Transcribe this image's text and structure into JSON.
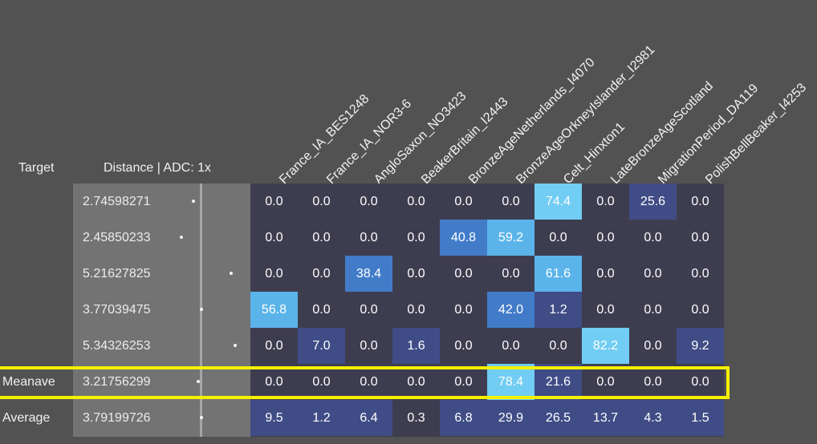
{
  "headers": {
    "target": "Target",
    "distance": "Distance | ADC: 1x"
  },
  "columns": [
    "France_IA_BES1248",
    "France_IA_NOR3-6",
    "AngloSaxon_NO3423",
    "BeakerBritain_I2443",
    "BronzeAgeNetherlands_I4070",
    "BronzeAgeOrkneyIslander_I2981",
    "Celt_Hinxton1",
    "LateBronzeAgeScotland",
    "MigrationPeriod_DA119",
    "PolishBellBeaker_I4253"
  ],
  "rows": [
    {
      "target": "",
      "distance": "2.74598271",
      "values": [
        "0.0",
        "0.0",
        "0.0",
        "0.0",
        "0.0",
        "0.0",
        "74.4",
        "0.0",
        "25.6",
        "0.0"
      ]
    },
    {
      "target": "",
      "distance": "2.45850233",
      "values": [
        "0.0",
        "0.0",
        "0.0",
        "0.0",
        "40.8",
        "59.2",
        "0.0",
        "0.0",
        "0.0",
        "0.0"
      ]
    },
    {
      "target": "",
      "distance": "5.21627825",
      "values": [
        "0.0",
        "0.0",
        "38.4",
        "0.0",
        "0.0",
        "0.0",
        "61.6",
        "0.0",
        "0.0",
        "0.0"
      ]
    },
    {
      "target": "",
      "distance": "3.77039475",
      "values": [
        "56.8",
        "0.0",
        "0.0",
        "0.0",
        "0.0",
        "42.0",
        "1.2",
        "0.0",
        "0.0",
        "0.0"
      ]
    },
    {
      "target": "",
      "distance": "5.34326253",
      "values": [
        "0.0",
        "7.0",
        "0.0",
        "1.6",
        "0.0",
        "0.0",
        "0.0",
        "82.2",
        "0.0",
        "9.2"
      ]
    },
    {
      "target": "Meanave",
      "distance": "3.21756299",
      "values": [
        "0.0",
        "0.0",
        "0.0",
        "0.0",
        "0.0",
        "78.4",
        "21.6",
        "0.0",
        "0.0",
        "0.0"
      ]
    },
    {
      "target": "Average",
      "distance": "3.79199726",
      "values": [
        "9.5",
        "1.2",
        "6.4",
        "0.3",
        "6.8",
        "29.9",
        "26.5",
        "13.7",
        "4.3",
        "1.5"
      ]
    }
  ],
  "dot_fractions": [
    0.4,
    0.2,
    1.0,
    0.53,
    1.06,
    0.48,
    0.53
  ],
  "colors": {
    "background": "#525252",
    "cell_zero": "#3e3d50",
    "cell_low": "#3f4c86",
    "cell_mid": "#427cc9",
    "cell_high": "#5ab4ea",
    "cell_top": "#71cdf3",
    "highlight": "#f5f000"
  }
}
